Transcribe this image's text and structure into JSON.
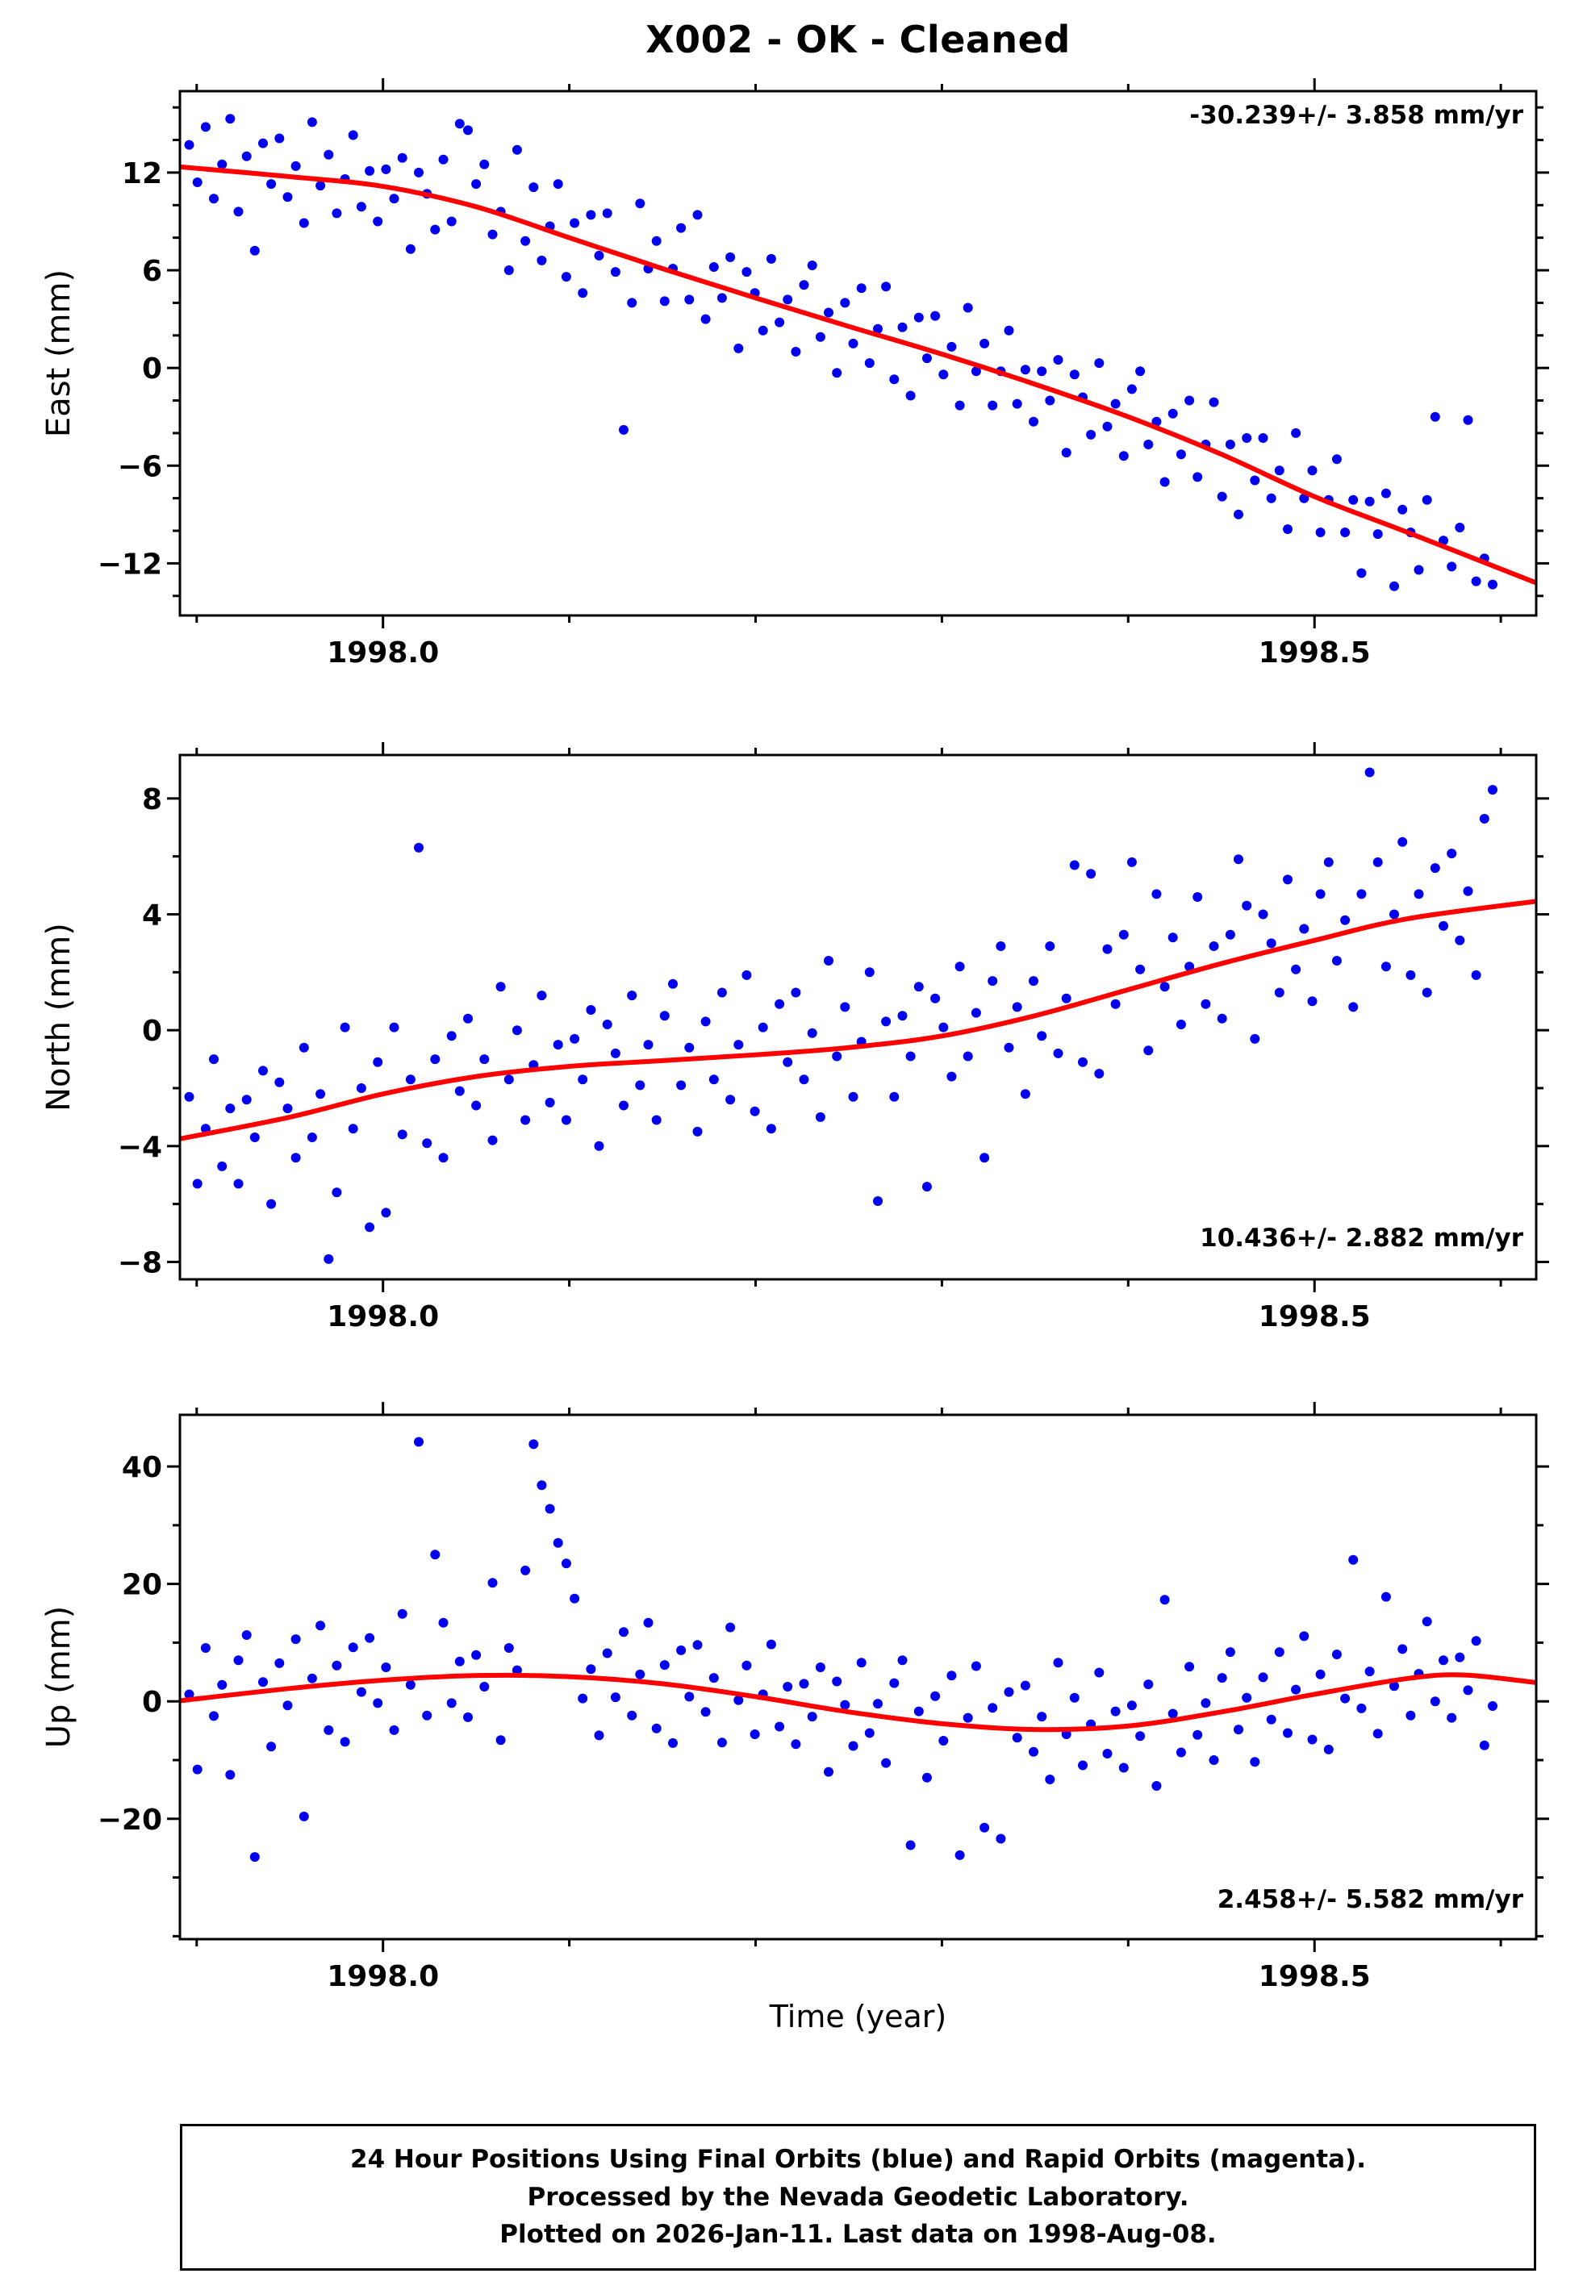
{
  "title": "X002  - OK - Cleaned",
  "caption": {
    "line1": "24 Hour Positions Using Final Orbits (blue) and Rapid Orbits (magenta).",
    "line2": "Processed by the Nevada Geodetic Laboratory.",
    "line3": "Plotted on 2026-Jan-11. Last data on 1998-Aug-08."
  },
  "colors": {
    "scatter": "#0000ee",
    "trend": "#ff0000",
    "frame": "#000000",
    "text": "#000000"
  },
  "chart_data": {
    "type": "scatter",
    "xlabel": "Time (year)",
    "x_axis": {
      "lim": [
        1997.891,
        1998.619
      ],
      "tick_values": [
        1998.0,
        1998.5
      ],
      "tick_labels": [
        "1998.0",
        "1998.5"
      ],
      "minor_step": 0.1
    },
    "panels": [
      {
        "id": "east",
        "ylabel": "East (mm)",
        "ylim": [
          -15.2,
          17.0
        ],
        "ytick_values": [
          12,
          6,
          0,
          -6,
          -12
        ],
        "ytick_labels": [
          "12",
          "6",
          "0",
          "−6",
          "−12"
        ],
        "y_minor_step": 2,
        "rate_label": "-30.239+/- 3.858 mm/yr",
        "rate_position": "top-right",
        "scatter": {
          "x_start": 1997.896,
          "x_step": 0.0044,
          "y": [
            13.7,
            11.4,
            14.8,
            10.4,
            12.5,
            15.3,
            9.6,
            13.0,
            7.2,
            13.8,
            11.3,
            14.1,
            10.5,
            12.4,
            8.9,
            15.1,
            11.2,
            13.1,
            9.5,
            11.6,
            14.3,
            9.9,
            12.1,
            9.0,
            12.2,
            10.4,
            12.9,
            7.3,
            12.0,
            10.7,
            8.5,
            12.8,
            9.0,
            15.0,
            14.6,
            11.3,
            12.5,
            8.2,
            9.6,
            6.0,
            13.4,
            7.8,
            11.1,
            6.6,
            8.7,
            11.3,
            5.6,
            8.9,
            4.6,
            9.4,
            6.9,
            9.5,
            5.9,
            -3.8,
            4.0,
            10.1,
            6.1,
            7.8,
            4.1,
            6.1,
            8.6,
            4.2,
            9.4,
            3.0,
            6.2,
            4.3,
            6.8,
            1.2,
            5.9,
            4.6,
            2.3,
            6.7,
            2.8,
            4.2,
            1.0,
            5.1,
            6.3,
            1.9,
            3.4,
            -0.3,
            4.0,
            1.5,
            4.9,
            0.3,
            2.4,
            5.0,
            -0.7,
            2.5,
            -1.7,
            3.1,
            0.6,
            3.2,
            -0.4,
            1.3,
            -2.3,
            3.7,
            -0.2,
            1.5,
            -2.3,
            -0.2,
            2.3,
            -2.2,
            -0.1,
            -3.3,
            -0.2,
            -2.0,
            0.5,
            -5.2,
            -0.4,
            -1.8,
            -4.1,
            0.3,
            -3.6,
            -2.2,
            -5.4,
            -1.3,
            -0.2,
            -4.7,
            -3.3,
            -7.0,
            -2.8,
            -5.3,
            -2.0,
            -6.7,
            -4.7,
            -2.1,
            -7.9,
            -4.7,
            -9.0,
            -4.3,
            -6.9,
            -4.3,
            -8.0,
            -6.3,
            -9.9,
            -4.0,
            -8.0,
            -6.3,
            -10.1,
            -8.1,
            -5.6,
            -10.1,
            -8.1,
            -12.6,
            -8.2,
            -10.2,
            -7.7,
            -13.4,
            -8.7,
            -10.1,
            -12.4,
            -8.1,
            -3.0,
            -10.6,
            -12.2,
            -9.8,
            -3.2,
            -13.1,
            -11.7,
            -13.3
          ]
        },
        "trend": [
          [
            1997.891,
            12.35
          ],
          [
            1997.95,
            11.75
          ],
          [
            1998.0,
            11.15
          ],
          [
            1998.05,
            9.9
          ],
          [
            1998.1,
            8.0
          ],
          [
            1998.15,
            6.1
          ],
          [
            1998.2,
            4.3
          ],
          [
            1998.25,
            2.55
          ],
          [
            1998.3,
            0.85
          ],
          [
            1998.35,
            -1.0
          ],
          [
            1998.4,
            -3.0
          ],
          [
            1998.45,
            -5.3
          ],
          [
            1998.5,
            -7.9
          ],
          [
            1998.55,
            -10.1
          ],
          [
            1998.619,
            -13.2
          ]
        ]
      },
      {
        "id": "north",
        "ylabel": "North (mm)",
        "ylim": [
          -8.6,
          9.5
        ],
        "ytick_values": [
          8,
          4,
          0,
          -4,
          -8
        ],
        "ytick_labels": [
          "8",
          "4",
          "0",
          "−4",
          "−8"
        ],
        "y_minor_step": 2,
        "rate_label": "10.436+/- 2.882 mm/yr",
        "rate_position": "bottom-right",
        "scatter": {
          "x_start": 1997.896,
          "x_step": 0.0044,
          "y": [
            -2.3,
            -5.3,
            -3.4,
            -1.0,
            -4.7,
            -2.7,
            -5.3,
            -2.4,
            -3.7,
            -1.4,
            -6.0,
            -1.8,
            -2.7,
            -4.4,
            -0.6,
            -3.7,
            -2.2,
            -7.9,
            -5.6,
            0.1,
            -3.4,
            -2.0,
            -6.8,
            -1.1,
            -6.3,
            0.1,
            -3.6,
            -1.7,
            6.3,
            -3.9,
            -1.0,
            -4.4,
            -0.2,
            -2.1,
            0.4,
            -2.6,
            -1.0,
            -3.8,
            1.5,
            -1.7,
            0.0,
            -3.1,
            -1.2,
            1.2,
            -2.5,
            -0.5,
            -3.1,
            -0.3,
            -1.7,
            0.7,
            -4.0,
            0.2,
            -0.8,
            -2.6,
            1.2,
            -1.9,
            -0.5,
            -3.1,
            0.5,
            1.6,
            -1.9,
            -0.6,
            -3.5,
            0.3,
            -1.7,
            1.3,
            -2.4,
            -0.5,
            1.9,
            -2.8,
            0.1,
            -3.4,
            0.9,
            -1.1,
            1.3,
            -1.7,
            -0.1,
            -3.0,
            2.4,
            -0.9,
            0.8,
            -2.3,
            -0.4,
            2.0,
            -5.9,
            0.3,
            -2.3,
            0.5,
            -0.9,
            1.5,
            -5.4,
            1.1,
            0.1,
            -1.6,
            2.2,
            -0.9,
            0.6,
            -4.4,
            1.7,
            2.9,
            -0.6,
            0.8,
            -2.2,
            1.7,
            -0.2,
            2.9,
            -0.8,
            1.1,
            5.7,
            -1.1,
            5.4,
            -1.5,
            2.8,
            0.9,
            3.3,
            5.8,
            2.1,
            -0.7,
            4.7,
            1.5,
            3.2,
            0.2,
            2.2,
            4.6,
            0.9,
            2.9,
            0.4,
            3.3,
            5.9,
            4.3,
            -0.3,
            4.0,
            3.0,
            1.3,
            5.2,
            2.1,
            3.5,
            1.0,
            4.7,
            5.8,
            2.4,
            3.8,
            0.8,
            4.7,
            8.9,
            5.8,
            2.2,
            4.0,
            6.5,
            1.9,
            4.7,
            1.3,
            5.6,
            3.6,
            6.1,
            3.1,
            4.8,
            1.9,
            7.3,
            8.3
          ]
        },
        "trend": [
          [
            1997.891,
            -3.75
          ],
          [
            1997.95,
            -3.0
          ],
          [
            1998.0,
            -2.2
          ],
          [
            1998.05,
            -1.6
          ],
          [
            1998.1,
            -1.25
          ],
          [
            1998.15,
            -1.05
          ],
          [
            1998.2,
            -0.85
          ],
          [
            1998.25,
            -0.6
          ],
          [
            1998.3,
            -0.2
          ],
          [
            1998.35,
            0.5
          ],
          [
            1998.4,
            1.4
          ],
          [
            1998.45,
            2.3
          ],
          [
            1998.5,
            3.1
          ],
          [
            1998.55,
            3.85
          ],
          [
            1998.619,
            4.45
          ]
        ]
      },
      {
        "id": "up",
        "ylabel": "Up (mm)",
        "ylim": [
          -40.5,
          48.8
        ],
        "ytick_values": [
          40,
          20,
          0,
          -20
        ],
        "ytick_labels": [
          "40",
          "20",
          "0",
          "−20"
        ],
        "y_minor_step": 10,
        "rate_label": "2.458+/- 5.582 mm/yr",
        "rate_position": "bottom-right",
        "scatter": {
          "x_start": 1997.896,
          "x_step": 0.0044,
          "y": [
            1.2,
            -11.6,
            9.1,
            -2.5,
            2.8,
            -12.5,
            7.0,
            11.3,
            -26.5,
            3.3,
            -7.7,
            6.5,
            -0.7,
            10.6,
            -19.6,
            3.9,
            12.9,
            -4.9,
            6.1,
            -6.9,
            9.2,
            1.6,
            10.8,
            -0.3,
            5.8,
            -4.9,
            14.9,
            2.8,
            44.2,
            -2.4,
            25.0,
            13.4,
            -0.3,
            6.8,
            -2.7,
            7.9,
            2.5,
            20.2,
            -6.6,
            9.1,
            5.3,
            22.3,
            43.8,
            36.8,
            32.8,
            27.0,
            23.5,
            17.5,
            0.5,
            5.5,
            -5.8,
            8.2,
            0.7,
            11.8,
            -2.4,
            4.6,
            13.4,
            -4.6,
            6.2,
            -7.1,
            8.7,
            0.8,
            9.6,
            -1.8,
            4.0,
            -7.0,
            12.6,
            0.2,
            6.1,
            -5.6,
            1.2,
            9.7,
            -4.3,
            2.5,
            -7.3,
            3.0,
            -2.6,
            5.8,
            -12.0,
            3.4,
            -0.6,
            -7.6,
            6.6,
            -5.4,
            -0.4,
            -10.5,
            3.1,
            7.0,
            -24.5,
            -1.7,
            -13.0,
            0.9,
            -6.7,
            4.4,
            -26.2,
            -2.8,
            6.0,
            -21.5,
            -1.1,
            -23.4,
            1.6,
            -6.2,
            2.7,
            -8.6,
            -2.6,
            -13.3,
            6.6,
            -5.6,
            0.6,
            -10.9,
            -3.9,
            4.9,
            -8.9,
            -1.7,
            -11.3,
            -0.7,
            -5.9,
            2.9,
            -14.4,
            17.3,
            -2.1,
            -8.7,
            5.9,
            -5.7,
            -0.3,
            -10.0,
            4.0,
            8.4,
            -4.8,
            0.6,
            -10.3,
            4.1,
            -3.1,
            8.4,
            -5.4,
            2.0,
            11.1,
            -6.5,
            4.6,
            -8.2,
            8.0,
            0.5,
            24.1,
            -1.2,
            5.1,
            -5.5,
            17.8,
            2.6,
            8.9,
            -2.4,
            4.7,
            13.6,
            0.0,
            7.0,
            -2.8,
            7.5,
            1.9,
            10.3,
            -7.5,
            -0.8
          ]
        },
        "trend": [
          [
            1997.891,
            0.1
          ],
          [
            1997.95,
            2.2
          ],
          [
            1998.0,
            3.6
          ],
          [
            1998.05,
            4.4
          ],
          [
            1998.1,
            4.2
          ],
          [
            1998.15,
            3.0
          ],
          [
            1998.2,
            0.8
          ],
          [
            1998.25,
            -1.8
          ],
          [
            1998.3,
            -3.8
          ],
          [
            1998.35,
            -4.8
          ],
          [
            1998.4,
            -4.2
          ],
          [
            1998.45,
            -1.8
          ],
          [
            1998.5,
            1.2
          ],
          [
            1998.55,
            3.9
          ],
          [
            1998.58,
            4.5
          ],
          [
            1998.619,
            3.2
          ]
        ]
      }
    ]
  }
}
